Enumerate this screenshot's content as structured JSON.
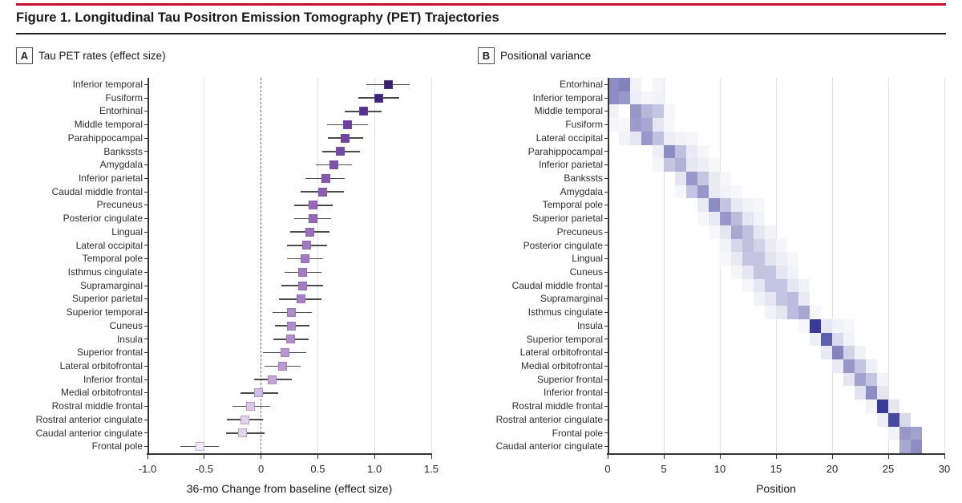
{
  "figure": {
    "title": "Figure 1. Longitudinal Tau Positron Emission Tomography (PET) Trajectories",
    "accent_color": "#c8102e",
    "rule_color": "#222222"
  },
  "chart_data": [
    {
      "type": "scatter",
      "panel_key": "A",
      "title": "Tau PET rates (effect size)",
      "xlabel": "36-mo Change from baseline (effect size)",
      "xlim": [
        -1.0,
        1.5
      ],
      "x_ticks": [
        {
          "v": -1.0,
          "label": "-1.0"
        },
        {
          "v": -0.5,
          "label": "-0.5"
        },
        {
          "v": 0,
          "label": "0"
        },
        {
          "v": 0.5,
          "label": "0.5"
        },
        {
          "v": 1.0,
          "label": "1.0"
        },
        {
          "v": 1.5,
          "label": "1.5"
        }
      ],
      "zero_line": 0,
      "grid": true,
      "rows": [
        {
          "region": "Inferior temporal",
          "value": 1.12,
          "ci": [
            0.93,
            1.31
          ],
          "color": "#392072"
        },
        {
          "region": "Fusiform",
          "value": 1.04,
          "ci": [
            0.86,
            1.22
          ],
          "color": "#3e2478"
        },
        {
          "region": "Entorhinal",
          "value": 0.9,
          "ci": [
            0.74,
            1.06
          ],
          "color": "#55308e"
        },
        {
          "region": "Middle temporal",
          "value": 0.76,
          "ci": [
            0.58,
            0.94
          ],
          "color": "#6b3f9f"
        },
        {
          "region": "Parahippocampal",
          "value": 0.74,
          "ci": [
            0.59,
            0.9
          ],
          "color": "#7044a2"
        },
        {
          "region": "Bankssts",
          "value": 0.7,
          "ci": [
            0.54,
            0.87
          ],
          "color": "#7649a5"
        },
        {
          "region": "Amygdala",
          "value": 0.64,
          "ci": [
            0.48,
            0.8
          ],
          "color": "#7e50aa"
        },
        {
          "region": "Inferior parietal",
          "value": 0.57,
          "ci": [
            0.39,
            0.74
          ],
          "color": "#8759ae"
        },
        {
          "region": "Caudal middle frontal",
          "value": 0.54,
          "ci": [
            0.35,
            0.73
          ],
          "color": "#8c5fb1"
        },
        {
          "region": "Precuneus",
          "value": 0.46,
          "ci": [
            0.29,
            0.63
          ],
          "color": "#9669b8"
        },
        {
          "region": "Posterior cingulate",
          "value": 0.46,
          "ci": [
            0.29,
            0.62
          ],
          "color": "#9669b8"
        },
        {
          "region": "Lingual",
          "value": 0.43,
          "ci": [
            0.26,
            0.6
          ],
          "color": "#9b70bb"
        },
        {
          "region": "Lateral occipital",
          "value": 0.4,
          "ci": [
            0.23,
            0.58
          ],
          "color": "#a076be"
        },
        {
          "region": "Temporal pole",
          "value": 0.39,
          "ci": [
            0.23,
            0.55
          ],
          "color": "#a278bf"
        },
        {
          "region": "Isthmus cingulate",
          "value": 0.37,
          "ci": [
            0.21,
            0.53
          ],
          "color": "#a57cc1"
        },
        {
          "region": "Supramarginal",
          "value": 0.37,
          "ci": [
            0.18,
            0.55
          ],
          "color": "#a57cc1"
        },
        {
          "region": "Superior parietal",
          "value": 0.35,
          "ci": [
            0.16,
            0.53
          ],
          "color": "#a880c3"
        },
        {
          "region": "Superior temporal",
          "value": 0.27,
          "ci": [
            0.1,
            0.45
          ],
          "color": "#b08bc9"
        },
        {
          "region": "Cuneus",
          "value": 0.27,
          "ci": [
            0.12,
            0.43
          ],
          "color": "#b08bc9"
        },
        {
          "region": "Insula",
          "value": 0.26,
          "ci": [
            0.11,
            0.42
          ],
          "color": "#b28dca"
        },
        {
          "region": "Superior frontal",
          "value": 0.21,
          "ci": [
            0.02,
            0.4
          ],
          "color": "#b996cf"
        },
        {
          "region": "Lateral orbitofrontal",
          "value": 0.19,
          "ci": [
            0.03,
            0.35
          ],
          "color": "#bc9ad1"
        },
        {
          "region": "Inferior frontal",
          "value": 0.1,
          "ci": [
            -0.06,
            0.27
          ],
          "color": "#c6a8d8"
        },
        {
          "region": "Medial orbitofrontal",
          "value": -0.02,
          "ci": [
            -0.18,
            0.15
          ],
          "color": "#d3bce2"
        },
        {
          "region": "Rostral middle frontal",
          "value": -0.09,
          "ci": [
            -0.25,
            0.08
          ],
          "color": "#dbc7e7"
        },
        {
          "region": "Rostral anterior cingulate",
          "value": -0.14,
          "ci": [
            -0.3,
            0.02
          ],
          "color": "#e2d2ec"
        },
        {
          "region": "Caudal anterior cingulate",
          "value": -0.16,
          "ci": [
            -0.31,
            0.03
          ],
          "color": "#e4d5ed"
        },
        {
          "region": "Frontal pole",
          "value": -0.54,
          "ci": [
            -0.71,
            -0.37
          ],
          "color": "#f2ebf7"
        }
      ]
    },
    {
      "type": "heatmap",
      "panel_key": "B",
      "title": "Positional variance",
      "xlabel": "Position",
      "xlim": [
        0,
        30
      ],
      "x_ticks": [
        {
          "v": 0,
          "label": "0"
        },
        {
          "v": 5,
          "label": "5"
        },
        {
          "v": 10,
          "label": "10"
        },
        {
          "v": 15,
          "label": "15"
        },
        {
          "v": 20,
          "label": "20"
        },
        {
          "v": 25,
          "label": "25"
        },
        {
          "v": 30,
          "label": "30"
        }
      ],
      "max_color": "#2e3192",
      "grid": true,
      "rows": [
        {
          "region": "Entorhinal",
          "cells": [
            [
              0,
              0.55
            ],
            [
              1,
              0.6
            ],
            [
              2,
              0.06
            ],
            [
              4,
              0.05
            ]
          ]
        },
        {
          "region": "Inferior temporal",
          "cells": [
            [
              0,
              0.55
            ],
            [
              1,
              0.5
            ],
            [
              2,
              0.08
            ],
            [
              3,
              0.05
            ],
            [
              4,
              0.06
            ]
          ]
        },
        {
          "region": "Middle temporal",
          "cells": [
            [
              0,
              0.07
            ],
            [
              2,
              0.5
            ],
            [
              3,
              0.35
            ],
            [
              4,
              0.28
            ],
            [
              5,
              0.05
            ]
          ]
        },
        {
          "region": "Fusiform",
          "cells": [
            [
              0,
              0.05
            ],
            [
              1,
              0.04
            ],
            [
              2,
              0.48
            ],
            [
              3,
              0.42
            ],
            [
              4,
              0.12
            ],
            [
              5,
              0.04
            ]
          ]
        },
        {
          "region": "Lateral occipital",
          "cells": [
            [
              1,
              0.06
            ],
            [
              2,
              0.12
            ],
            [
              3,
              0.5
            ],
            [
              4,
              0.3
            ],
            [
              5,
              0.08
            ],
            [
              6,
              0.06
            ],
            [
              7,
              0.04
            ]
          ]
        },
        {
          "region": "Parahippocampal",
          "cells": [
            [
              4,
              0.08
            ],
            [
              5,
              0.55
            ],
            [
              6,
              0.3
            ],
            [
              7,
              0.1
            ],
            [
              8,
              0.05
            ]
          ]
        },
        {
          "region": "Inferior parietal",
          "cells": [
            [
              4,
              0.05
            ],
            [
              5,
              0.28
            ],
            [
              6,
              0.38
            ],
            [
              7,
              0.12
            ],
            [
              8,
              0.08
            ],
            [
              9,
              0.04
            ]
          ]
        },
        {
          "region": "Bankssts",
          "cells": [
            [
              6,
              0.12
            ],
            [
              7,
              0.5
            ],
            [
              8,
              0.28
            ],
            [
              9,
              0.1
            ],
            [
              10,
              0.05
            ]
          ]
        },
        {
          "region": "Amygdala",
          "cells": [
            [
              6,
              0.05
            ],
            [
              7,
              0.28
            ],
            [
              8,
              0.5
            ],
            [
              9,
              0.1
            ],
            [
              10,
              0.06
            ],
            [
              11,
              0.04
            ]
          ]
        },
        {
          "region": "Temporal pole",
          "cells": [
            [
              8,
              0.1
            ],
            [
              9,
              0.55
            ],
            [
              10,
              0.28
            ],
            [
              11,
              0.1
            ],
            [
              12,
              0.06
            ],
            [
              13,
              0.04
            ]
          ]
        },
        {
          "region": "Superior parietal",
          "cells": [
            [
              8,
              0.04
            ],
            [
              9,
              0.1
            ],
            [
              10,
              0.5
            ],
            [
              11,
              0.32
            ],
            [
              12,
              0.12
            ],
            [
              13,
              0.06
            ]
          ]
        },
        {
          "region": "Precuneus",
          "cells": [
            [
              9,
              0.04
            ],
            [
              10,
              0.12
            ],
            [
              11,
              0.42
            ],
            [
              12,
              0.3
            ],
            [
              13,
              0.12
            ],
            [
              14,
              0.06
            ]
          ]
        },
        {
          "region": "Posterior cingulate",
          "cells": [
            [
              10,
              0.06
            ],
            [
              11,
              0.2
            ],
            [
              12,
              0.3
            ],
            [
              13,
              0.22
            ],
            [
              14,
              0.1
            ],
            [
              15,
              0.05
            ]
          ]
        },
        {
          "region": "Lingual",
          "cells": [
            [
              10,
              0.04
            ],
            [
              11,
              0.1
            ],
            [
              12,
              0.28
            ],
            [
              13,
              0.28
            ],
            [
              14,
              0.14
            ],
            [
              15,
              0.08
            ],
            [
              16,
              0.04
            ]
          ]
        },
        {
          "region": "Cuneus",
          "cells": [
            [
              11,
              0.05
            ],
            [
              12,
              0.12
            ],
            [
              13,
              0.28
            ],
            [
              14,
              0.28
            ],
            [
              15,
              0.12
            ],
            [
              16,
              0.06
            ]
          ]
        },
        {
          "region": "Caudal middle frontal",
          "cells": [
            [
              12,
              0.05
            ],
            [
              13,
              0.12
            ],
            [
              14,
              0.28
            ],
            [
              15,
              0.28
            ],
            [
              16,
              0.12
            ],
            [
              17,
              0.06
            ]
          ]
        },
        {
          "region": "Supramarginal",
          "cells": [
            [
              13,
              0.06
            ],
            [
              14,
              0.12
            ],
            [
              15,
              0.28
            ],
            [
              16,
              0.32
            ],
            [
              17,
              0.1
            ]
          ]
        },
        {
          "region": "Isthmus cingulate",
          "cells": [
            [
              14,
              0.06
            ],
            [
              15,
              0.12
            ],
            [
              16,
              0.32
            ],
            [
              17,
              0.42
            ],
            [
              18,
              0.04
            ]
          ]
        },
        {
          "region": "Insula",
          "cells": [
            [
              17,
              0.04
            ],
            [
              18,
              0.95
            ],
            [
              19,
              0.12
            ],
            [
              20,
              0.06
            ],
            [
              21,
              0.04
            ]
          ]
        },
        {
          "region": "Superior temporal",
          "cells": [
            [
              18,
              0.08
            ],
            [
              19,
              0.78
            ],
            [
              20,
              0.18
            ],
            [
              21,
              0.06
            ]
          ]
        },
        {
          "region": "Lateral orbitofrontal",
          "cells": [
            [
              19,
              0.1
            ],
            [
              20,
              0.6
            ],
            [
              21,
              0.22
            ],
            [
              22,
              0.06
            ]
          ]
        },
        {
          "region": "Medial orbitofrontal",
          "cells": [
            [
              20,
              0.1
            ],
            [
              21,
              0.5
            ],
            [
              22,
              0.28
            ],
            [
              23,
              0.08
            ]
          ]
        },
        {
          "region": "Superior frontal",
          "cells": [
            [
              21,
              0.12
            ],
            [
              22,
              0.45
            ],
            [
              23,
              0.28
            ],
            [
              24,
              0.06
            ]
          ]
        },
        {
          "region": "Inferior frontal",
          "cells": [
            [
              22,
              0.14
            ],
            [
              23,
              0.55
            ],
            [
              24,
              0.12
            ]
          ]
        },
        {
          "region": "Rostral middle frontal",
          "cells": [
            [
              23,
              0.06
            ],
            [
              24,
              0.95
            ],
            [
              25,
              0.12
            ]
          ]
        },
        {
          "region": "Rostral anterior cingulate",
          "cells": [
            [
              24,
              0.08
            ],
            [
              25,
              0.88
            ],
            [
              26,
              0.18
            ]
          ]
        },
        {
          "region": "Frontal pole",
          "cells": [
            [
              25,
              0.06
            ],
            [
              26,
              0.5
            ],
            [
              27,
              0.45
            ]
          ]
        },
        {
          "region": "Caudal anterior cingulate",
          "cells": [
            [
              26,
              0.42
            ],
            [
              27,
              0.55
            ]
          ]
        }
      ]
    }
  ]
}
